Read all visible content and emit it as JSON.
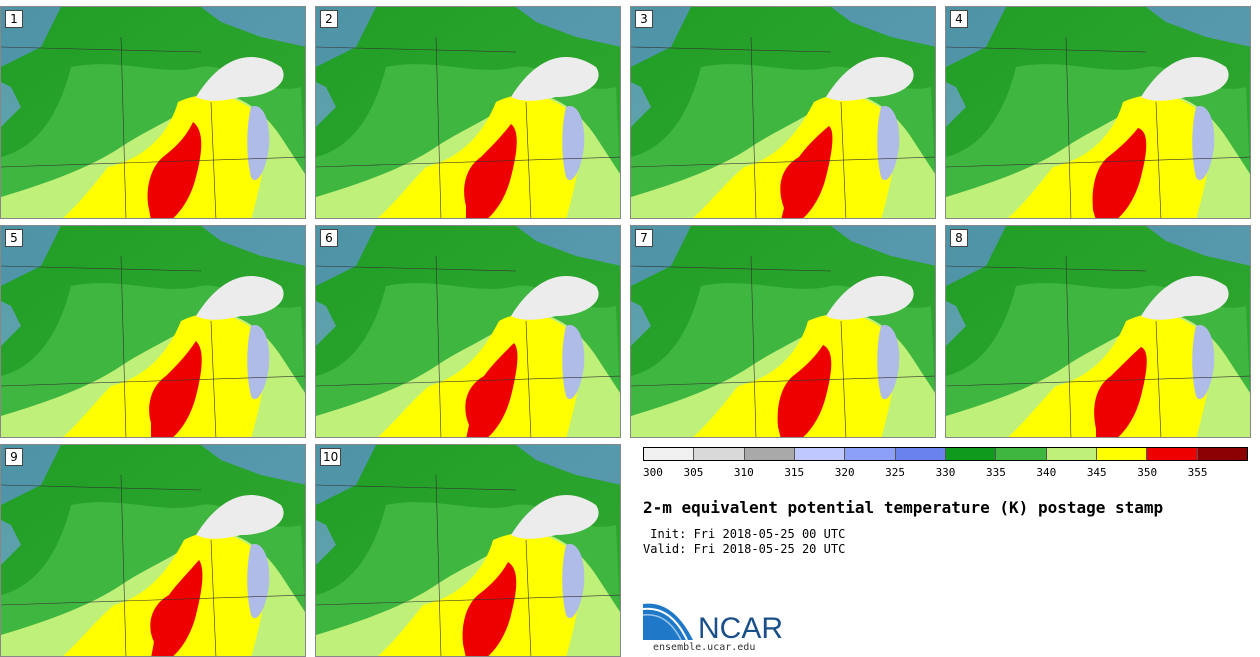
{
  "panels": [
    {
      "number": "1"
    },
    {
      "number": "2"
    },
    {
      "number": "3"
    },
    {
      "number": "4"
    },
    {
      "number": "5"
    },
    {
      "number": "6"
    },
    {
      "number": "7"
    },
    {
      "number": "8"
    },
    {
      "number": "9"
    },
    {
      "number": "10"
    }
  ],
  "colorbar": {
    "ticks": [
      "300",
      "305",
      "310",
      "315",
      "320",
      "325",
      "330",
      "335",
      "340",
      "345",
      "350",
      "355"
    ],
    "colors": [
      "#f0f0f0",
      "#d9d9d9",
      "#a9a9a9",
      "#bfc9ff",
      "#8ca0f7",
      "#6a82ee",
      "#0f9a1d",
      "#3fb63f",
      "#bff07a",
      "#ffff00",
      "#ee0000",
      "#8b0000"
    ]
  },
  "title": "2-m equivalent potential temperature (K) postage stamp",
  "init": " Init: Fri 2018-05-25 00 UTC",
  "valid": "Valid: Fri 2018-05-25 20 UTC",
  "logo": {
    "text": "NCAR",
    "url": "ensemble.ucar.edu"
  }
}
